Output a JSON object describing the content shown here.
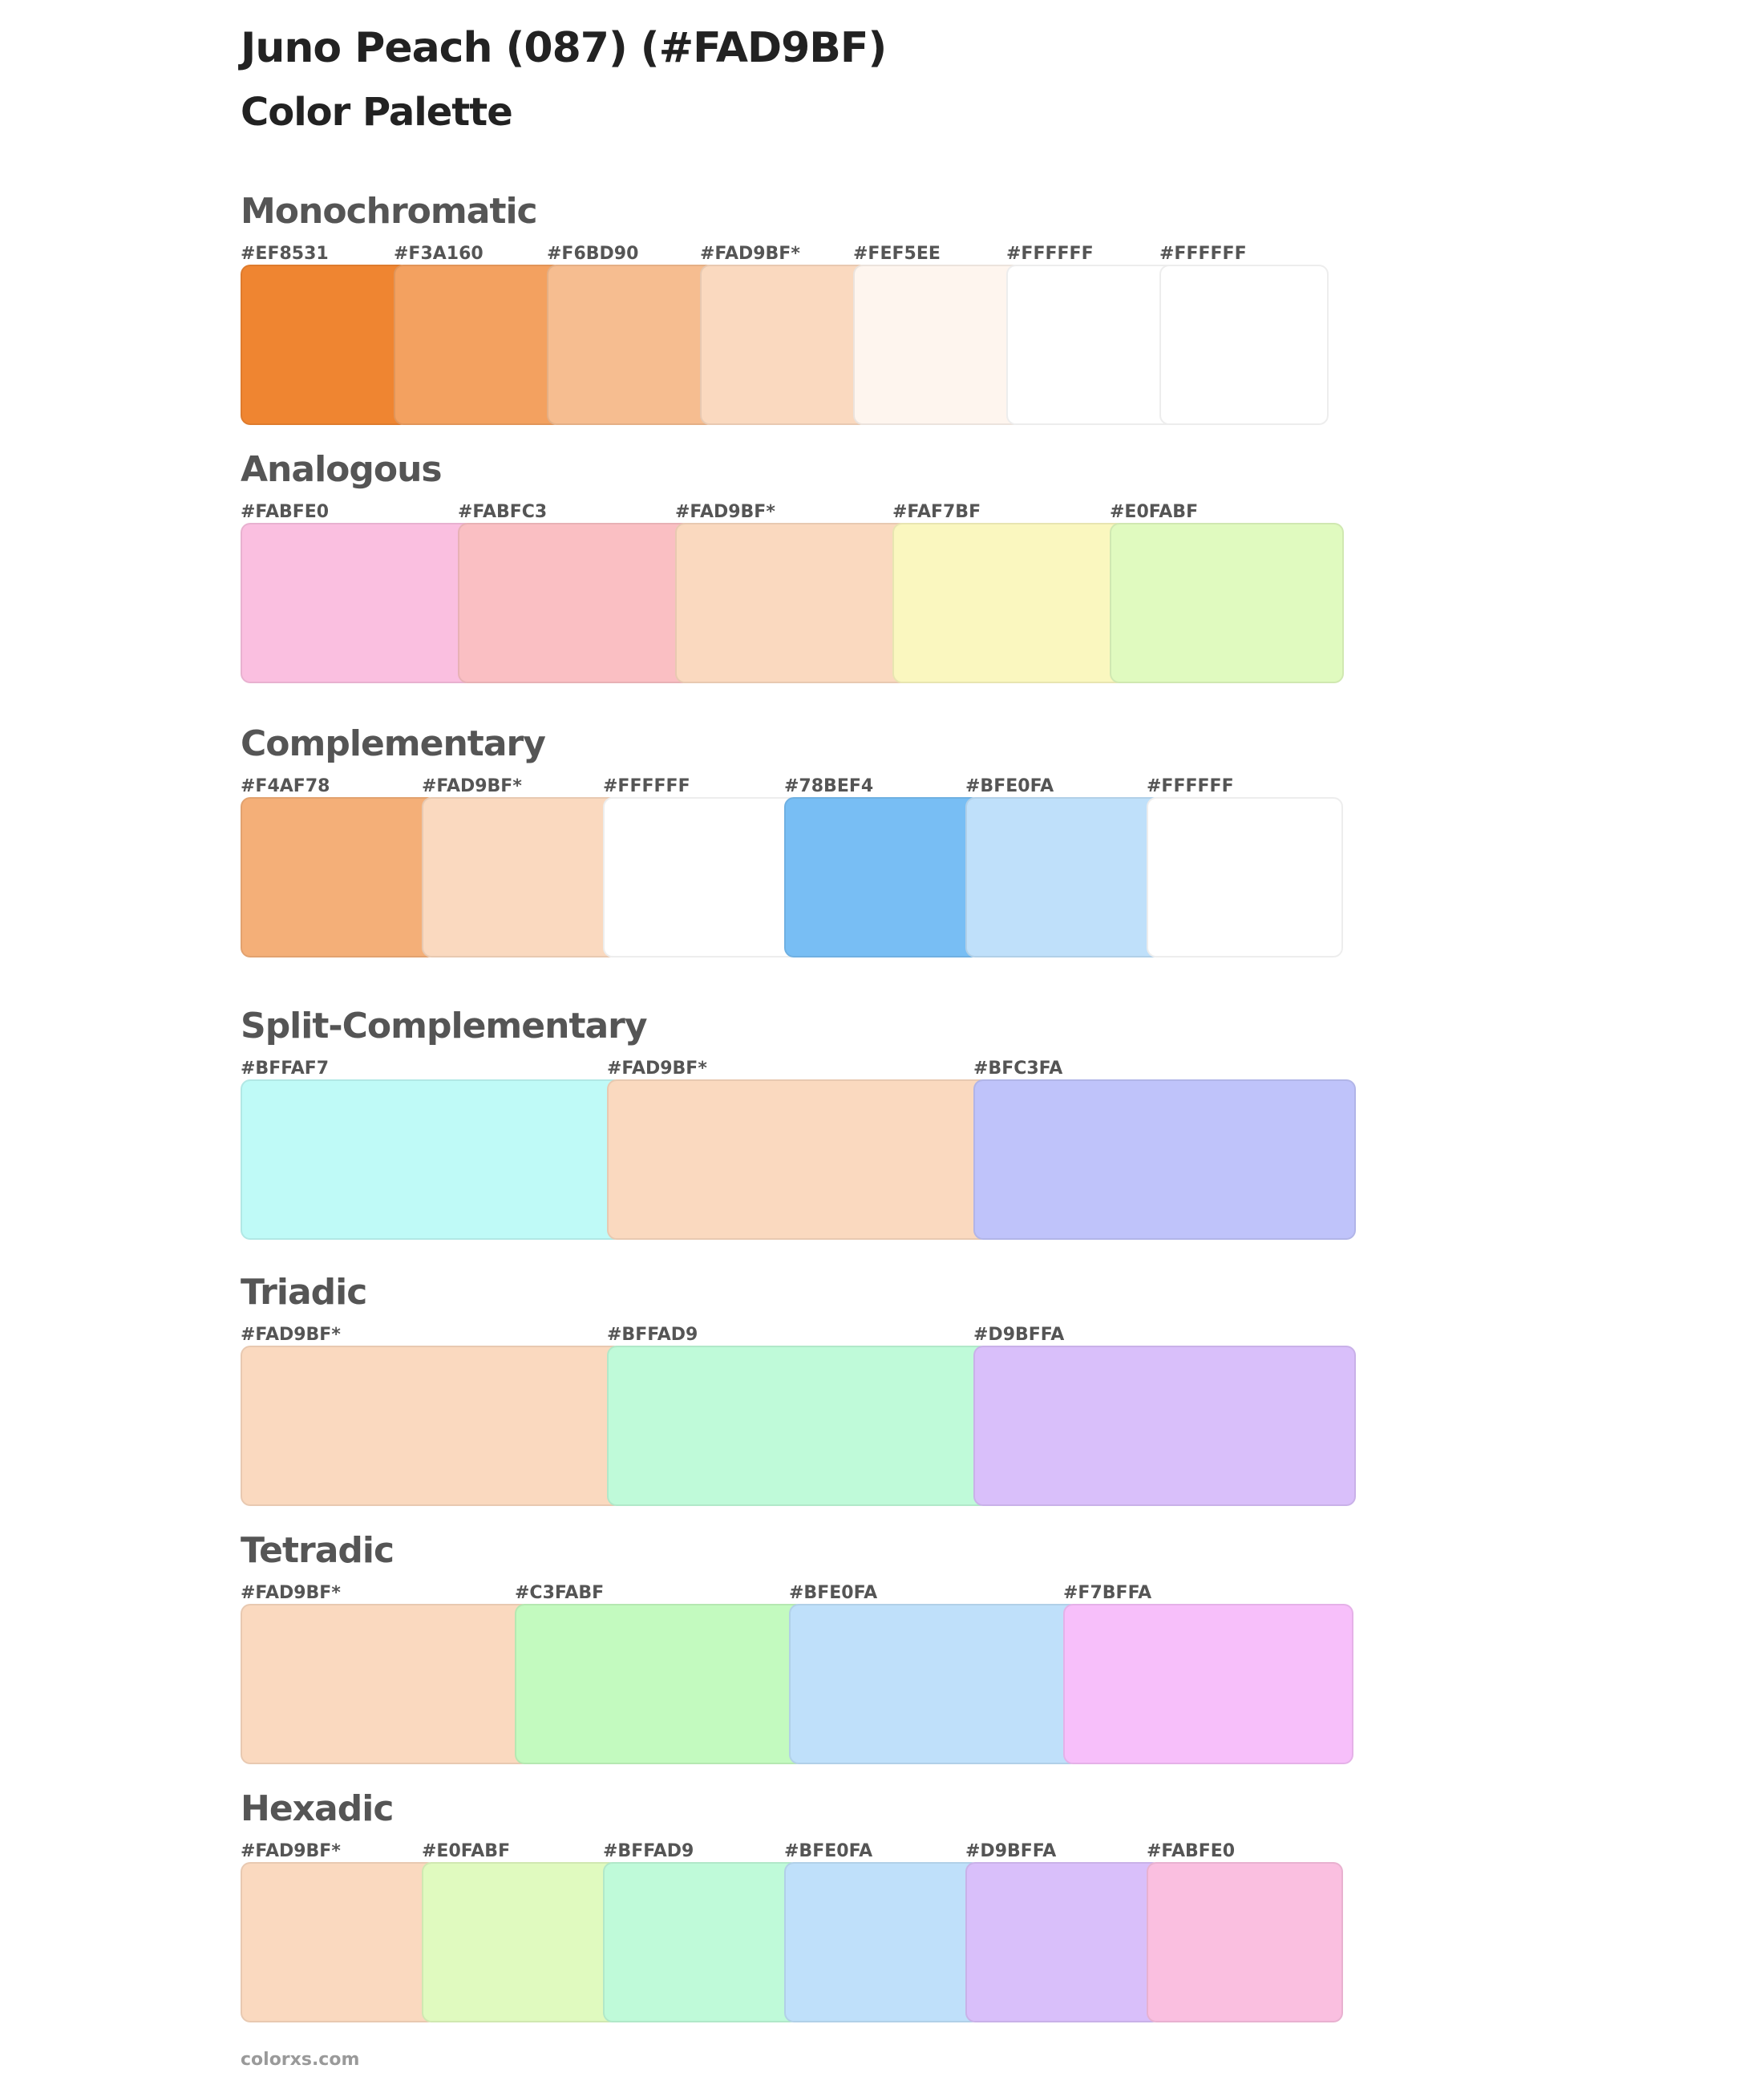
{
  "header": {
    "title": "Juno Peach (087) (#FAD9BF)",
    "subtitle": "Color Palette"
  },
  "sections": [
    {
      "name": "Monochromatic",
      "swatches": [
        {
          "label": "#EF8531",
          "color": "#EF8531"
        },
        {
          "label": "#F3A160",
          "color": "#F3A160"
        },
        {
          "label": "#F6BD90",
          "color": "#F6BD90"
        },
        {
          "label": "#FAD9BF*",
          "color": "#FAD9BF"
        },
        {
          "label": "#FEF5EE",
          "color": "#FEF5EE"
        },
        {
          "label": "#FFFFFF",
          "color": "#FFFFFF"
        },
        {
          "label": "#FFFFFF",
          "color": "#FFFFFF"
        }
      ]
    },
    {
      "name": "Analogous",
      "swatches": [
        {
          "label": "#FABFE0",
          "color": "#FABFE0"
        },
        {
          "label": "#FABFC3",
          "color": "#FABFC3"
        },
        {
          "label": "#FAD9BF*",
          "color": "#FAD9BF"
        },
        {
          "label": "#FAF7BF",
          "color": "#FAF7BF"
        },
        {
          "label": "#E0FABF",
          "color": "#E0FABF"
        }
      ]
    },
    {
      "name": "Complementary",
      "swatches": [
        {
          "label": "#F4AF78",
          "color": "#F4AF78"
        },
        {
          "label": "#FAD9BF*",
          "color": "#FAD9BF"
        },
        {
          "label": "#FFFFFF",
          "color": "#FFFFFF"
        },
        {
          "label": "#78BEF4",
          "color": "#78BEF4"
        },
        {
          "label": "#BFE0FA",
          "color": "#BFE0FA"
        },
        {
          "label": "#FFFFFF",
          "color": "#FFFFFF"
        }
      ]
    },
    {
      "name": "Split-Complementary",
      "swatches": [
        {
          "label": "#BFFAF7",
          "color": "#BFFAF7"
        },
        {
          "label": "#FAD9BF*",
          "color": "#FAD9BF"
        },
        {
          "label": "#BFC3FA",
          "color": "#BFC3FA"
        }
      ]
    },
    {
      "name": "Triadic",
      "swatches": [
        {
          "label": "#FAD9BF*",
          "color": "#FAD9BF"
        },
        {
          "label": "#BFFAD9",
          "color": "#BFFAD9"
        },
        {
          "label": "#D9BFFA",
          "color": "#D9BFFA"
        }
      ]
    },
    {
      "name": "Tetradic",
      "swatches": [
        {
          "label": "#FAD9BF*",
          "color": "#FAD9BF"
        },
        {
          "label": "#C3FABF",
          "color": "#C3FABF"
        },
        {
          "label": "#BFE0FA",
          "color": "#BFE0FA"
        },
        {
          "label": "#F7BFFA",
          "color": "#F7BFFA"
        }
      ]
    },
    {
      "name": "Hexadic",
      "swatches": [
        {
          "label": "#FAD9BF*",
          "color": "#FAD9BF"
        },
        {
          "label": "#E0FABF",
          "color": "#E0FABF"
        },
        {
          "label": "#BFFAD9",
          "color": "#BFFAD9"
        },
        {
          "label": "#BFE0FA",
          "color": "#BFE0FA"
        },
        {
          "label": "#D9BFFA",
          "color": "#D9BFFA"
        },
        {
          "label": "#FABFE0",
          "color": "#FABFE0"
        }
      ]
    }
  ],
  "footer": {
    "site": "colorxs.com"
  }
}
